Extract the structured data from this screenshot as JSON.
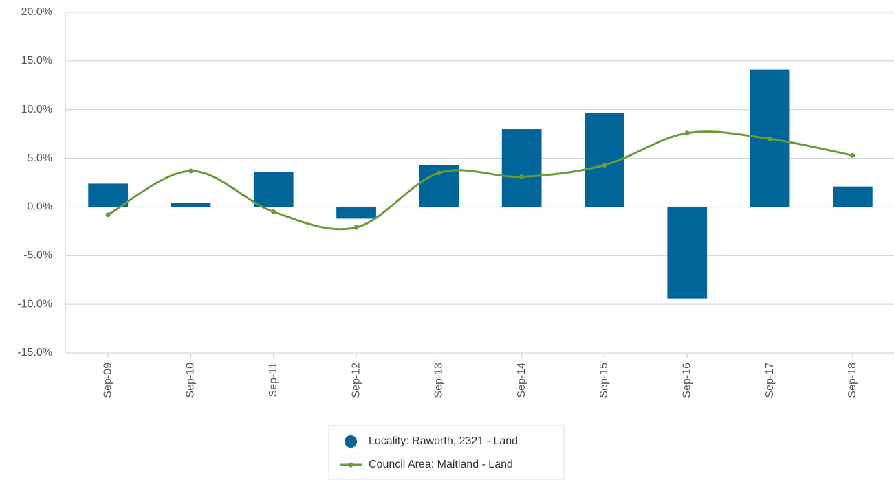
{
  "chart_data": {
    "type": "bar",
    "categories": [
      "Sep-09",
      "Sep-10",
      "Sep-11",
      "Sep-12",
      "Sep-13",
      "Sep-14",
      "Sep-15",
      "Sep-16",
      "Sep-17",
      "Sep-18"
    ],
    "series": [
      {
        "name": "Locality: Raworth, 2321 - Land",
        "type": "bar",
        "color": "#00669a",
        "values": [
          2.4,
          0.4,
          3.6,
          -1.2,
          4.3,
          8.0,
          9.7,
          -9.4,
          14.1,
          2.1
        ]
      },
      {
        "name": "Council Area: Maitland - Land",
        "type": "line",
        "color": "#6b9b37",
        "values": [
          -0.8,
          3.7,
          -0.5,
          -2.1,
          3.5,
          3.1,
          4.3,
          7.6,
          7.0,
          5.3
        ]
      }
    ],
    "ylim": [
      -15,
      20
    ],
    "yticks": [
      {
        "value": -15,
        "label": "-15.0%"
      },
      {
        "value": -10,
        "label": "-10.0%"
      },
      {
        "value": -5,
        "label": "-5.0%"
      },
      {
        "value": 0,
        "label": "0.0%"
      },
      {
        "value": 5,
        "label": "5.0%"
      },
      {
        "value": 10,
        "label": "10.0%"
      },
      {
        "value": 15,
        "label": "15.0%"
      },
      {
        "value": 20,
        "label": "20.0%"
      }
    ],
    "grid": true,
    "legend": "bottom"
  }
}
